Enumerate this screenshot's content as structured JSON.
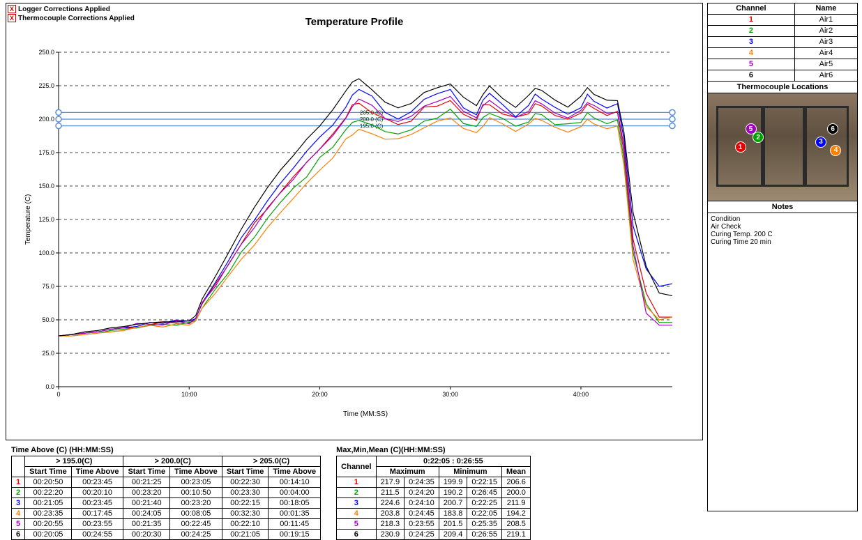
{
  "corrections": {
    "logger": "Logger Corrections Applied",
    "thermo": "Thermocouple Corrections Applied"
  },
  "chart": {
    "title": "Temperature Profile",
    "xlabel": "Time (MM:SS)",
    "ylabel": "Temperature (C)",
    "xlim": [
      0,
      47
    ],
    "ylim": [
      0,
      250
    ],
    "xticks": [
      0,
      10,
      20,
      30,
      40
    ],
    "xtick_labels": [
      "0",
      "10:00",
      "20:00",
      "30:00",
      "40:00"
    ],
    "yticks": [
      0,
      25,
      50,
      75,
      100,
      125,
      150,
      175,
      200,
      225,
      250
    ],
    "ytick_labels": [
      "0.0",
      "25.0",
      "50.0",
      "75.0",
      "100.0",
      "125.0",
      "150.0",
      "175.0",
      "200.0",
      "225.0",
      "250.0"
    ],
    "grid_color": "#000000",
    "grid_dash": "4,4",
    "reference_lines": [
      {
        "y": 195,
        "label": "195.0 (C)",
        "color": "#5b8fd4"
      },
      {
        "y": 200,
        "label": "200.0 (C)",
        "color": "#5b8fd4"
      },
      {
        "y": 205,
        "label": "205.0 (C)",
        "color": "#5b8fd4"
      }
    ],
    "channels": [
      {
        "id": 1,
        "name": "Air1",
        "color": "#e60000"
      },
      {
        "id": 2,
        "name": "Air2",
        "color": "#00a000"
      },
      {
        "id": 3,
        "name": "Air3",
        "color": "#0000ff"
      },
      {
        "id": 4,
        "name": "Air4",
        "color": "#ff8000"
      },
      {
        "id": 5,
        "name": "Air5",
        "color": "#a000c0"
      },
      {
        "id": 6,
        "name": "Air6",
        "color": "#000000"
      }
    ],
    "series_x": [
      0,
      1,
      2,
      3,
      4,
      5,
      6,
      7,
      8,
      9,
      10,
      10.5,
      11,
      12,
      13,
      14,
      15,
      16,
      17,
      18,
      19,
      20,
      21,
      22,
      22.5,
      23,
      24,
      25,
      26,
      27,
      28,
      29,
      30,
      31,
      32,
      32.5,
      33,
      34,
      35,
      36,
      36.5,
      37,
      38,
      39,
      40,
      40.5,
      41,
      42,
      42.8,
      43.3,
      44,
      45,
      46,
      47
    ],
    "series_y": {
      "1": [
        38,
        39,
        40,
        41,
        43,
        44,
        45,
        47,
        47,
        48,
        48,
        51,
        62,
        76,
        92,
        107,
        121,
        134,
        146,
        156,
        168,
        178,
        189,
        201,
        210,
        213,
        205,
        199,
        197,
        199,
        208,
        210,
        214,
        204,
        199,
        210,
        212,
        204,
        200,
        205,
        212,
        209,
        203,
        200,
        205,
        211,
        207,
        204,
        206,
        180,
        110,
        70,
        52,
        52
      ],
      "2": [
        38,
        38,
        39,
        40,
        42,
        43,
        44,
        46,
        46,
        47,
        47,
        50,
        59,
        72,
        86,
        100,
        112,
        126,
        138,
        148,
        158,
        170,
        180,
        192,
        197,
        200,
        195,
        191,
        189,
        192,
        198,
        202,
        206,
        198,
        194,
        201,
        205,
        200,
        195,
        198,
        204,
        203,
        197,
        195,
        199,
        204,
        201,
        197,
        199,
        170,
        100,
        62,
        48,
        48
      ],
      "3": [
        38,
        39,
        40,
        41,
        43,
        44,
        46,
        48,
        48,
        49,
        48,
        52,
        63,
        78,
        94,
        110,
        125,
        140,
        152,
        164,
        175,
        186,
        197,
        209,
        218,
        222,
        216,
        206,
        201,
        205,
        215,
        218,
        222,
        210,
        203,
        214,
        219,
        210,
        203,
        211,
        218,
        215,
        208,
        204,
        210,
        218,
        213,
        208,
        211,
        185,
        120,
        88,
        75,
        77
      ],
      "4": [
        38,
        38,
        39,
        40,
        41,
        42,
        44,
        46,
        46,
        47,
        47,
        50,
        58,
        70,
        82,
        94,
        106,
        118,
        130,
        142,
        152,
        163,
        172,
        185,
        189,
        192,
        188,
        185,
        184,
        188,
        194,
        198,
        202,
        194,
        190,
        196,
        201,
        196,
        191,
        195,
        200,
        199,
        193,
        191,
        195,
        200,
        198,
        193,
        195,
        165,
        95,
        60,
        50,
        52
      ],
      "5": [
        38,
        39,
        40,
        41,
        43,
        44,
        46,
        47,
        47,
        48,
        48,
        51,
        62,
        76,
        91,
        106,
        120,
        133,
        145,
        156,
        167,
        178,
        188,
        200,
        210,
        215,
        210,
        201,
        198,
        202,
        210,
        213,
        217,
        206,
        201,
        210,
        214,
        207,
        201,
        206,
        214,
        211,
        205,
        201,
        206,
        213,
        210,
        204,
        206,
        175,
        105,
        55,
        46,
        46
      ],
      "6": [
        38,
        39,
        41,
        42,
        44,
        45,
        47,
        48,
        48,
        49,
        49,
        53,
        66,
        82,
        100,
        118,
        134,
        149,
        162,
        173,
        185,
        195,
        207,
        221,
        228,
        230,
        222,
        213,
        208,
        212,
        220,
        223,
        227,
        216,
        210,
        219,
        224,
        216,
        209,
        217,
        224,
        221,
        214,
        210,
        216,
        224,
        219,
        213,
        215,
        190,
        130,
        90,
        70,
        68
      ]
    }
  },
  "channel_table": {
    "headers": [
      "Channel",
      "Name"
    ]
  },
  "thermo_section": {
    "title": "Thermocouple Locations",
    "markers": [
      {
        "n": 1,
        "color": "#e60000",
        "x": 18,
        "y": 45
      },
      {
        "n": 2,
        "color": "#00a000",
        "x": 30,
        "y": 36
      },
      {
        "n": 5,
        "color": "#a000c0",
        "x": 25,
        "y": 28
      },
      {
        "n": 3,
        "color": "#0000ff",
        "x": 72,
        "y": 40
      },
      {
        "n": 4,
        "color": "#ff8000",
        "x": 82,
        "y": 48
      },
      {
        "n": 6,
        "color": "#000000",
        "x": 80,
        "y": 28
      }
    ]
  },
  "notes": {
    "title": "Notes",
    "lines": [
      "Condition",
      "Air Check",
      "Curing Temp. 200 C",
      "Curing Time 20 min"
    ]
  },
  "time_above": {
    "title": "Time Above (C) (HH:MM:SS)",
    "thresholds": [
      "> 195.0(C)",
      "> 200.0(C)",
      "> 205.0(C)"
    ],
    "sub_headers": [
      "Start Time",
      "Time Above"
    ],
    "rows": [
      {
        "ch": 1,
        "vals": [
          "00:20:50",
          "00:23:45",
          "00:21:25",
          "00:23:05",
          "00:22:30",
          "00:14:10"
        ]
      },
      {
        "ch": 2,
        "vals": [
          "00:22:20",
          "00:20:10",
          "00:23:20",
          "00:10:50",
          "00:23:30",
          "00:04:00"
        ]
      },
      {
        "ch": 3,
        "vals": [
          "00:21:05",
          "00:23:45",
          "00:21:40",
          "00:23:20",
          "00:22:15",
          "00:18:05"
        ]
      },
      {
        "ch": 4,
        "vals": [
          "00:23:35",
          "00:17:45",
          "00:24:05",
          "00:08:05",
          "00:32:30",
          "00:01:35"
        ]
      },
      {
        "ch": 5,
        "vals": [
          "00:20:55",
          "00:23:55",
          "00:21:35",
          "00:22:45",
          "00:22:10",
          "00:11:45"
        ]
      },
      {
        "ch": 6,
        "vals": [
          "00:20:05",
          "00:24:55",
          "00:20:30",
          "00:24:25",
          "00:21:05",
          "00:19:15"
        ]
      }
    ]
  },
  "stats": {
    "title": "Max,Min,Mean (C)(HH:MM:SS)",
    "range": "0:22:05 : 0:26:55",
    "headers": [
      "Channel",
      "Maximum",
      "Minimum",
      "Mean"
    ],
    "rows": [
      {
        "ch": 1,
        "max_v": "217.9",
        "max_t": "0:24:35",
        "min_v": "199.9",
        "min_t": "0:22:15",
        "mean": "206.6"
      },
      {
        "ch": 2,
        "max_v": "211.5",
        "max_t": "0:24:20",
        "min_v": "190.2",
        "min_t": "0:26:45",
        "mean": "200.0"
      },
      {
        "ch": 3,
        "max_v": "224.6",
        "max_t": "0:24:10",
        "min_v": "200.7",
        "min_t": "0:22:25",
        "mean": "211.9"
      },
      {
        "ch": 4,
        "max_v": "203.8",
        "max_t": "0:24:45",
        "min_v": "183.8",
        "min_t": "0:22:05",
        "mean": "194.2"
      },
      {
        "ch": 5,
        "max_v": "218.3",
        "max_t": "0:23:55",
        "min_v": "201.5",
        "min_t": "0:25:35",
        "mean": "208.5"
      },
      {
        "ch": 6,
        "max_v": "230.9",
        "max_t": "0:24:25",
        "min_v": "209.4",
        "min_t": "0:26:55",
        "mean": "219.1"
      }
    ]
  }
}
